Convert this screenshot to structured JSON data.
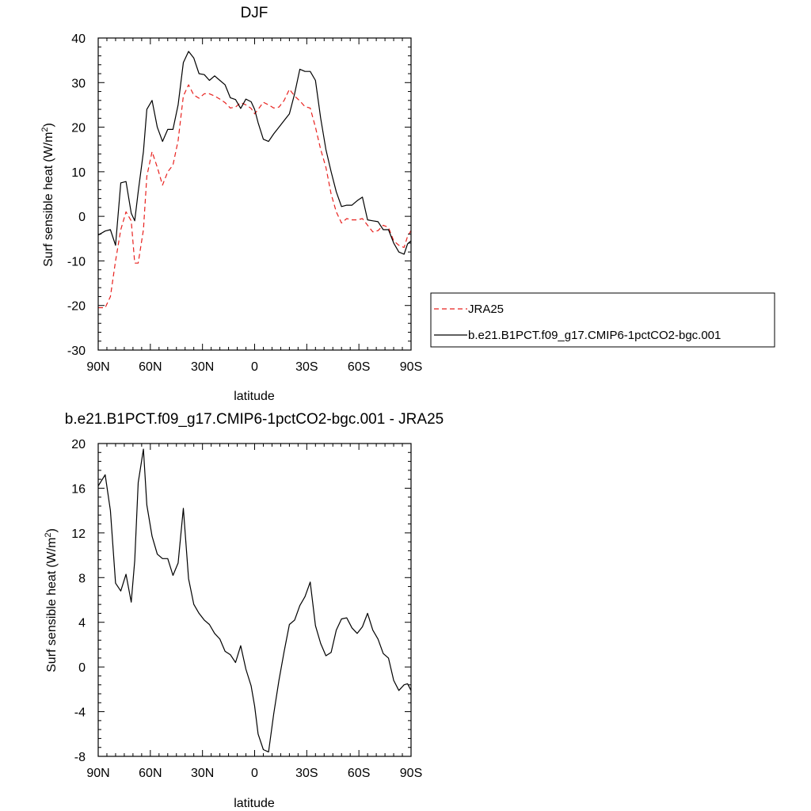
{
  "chart_data": [
    {
      "type": "line",
      "title": "DJF",
      "xlabel": "latitude",
      "ylabel": "Surf sensible heat",
      "ylabel_unit": "(W/m",
      "ylabel_unit_sup": "2",
      "ylabel_unit_close": ")",
      "xlim": [
        90,
        -90
      ],
      "ylim": [
        -30,
        40
      ],
      "x_ticks": [
        90,
        60,
        30,
        0,
        -30,
        -60,
        -90
      ],
      "x_tick_labels": [
        "90N",
        "60N",
        "30N",
        "0",
        "30S",
        "60S",
        "90S"
      ],
      "y_ticks": [
        -30,
        -20,
        -10,
        0,
        10,
        20,
        30,
        40
      ],
      "y_tick_labels": [
        "-30",
        "-20",
        "-10",
        "0",
        "10",
        "20",
        "30",
        "40"
      ],
      "grid": false,
      "legend": "outside-right",
      "series": [
        {
          "name": "JRA25",
          "color": "#e8211e",
          "style": "dashed",
          "x": [
            90,
            86,
            83,
            80,
            77,
            74,
            71,
            69,
            67,
            64,
            62,
            59,
            56,
            53,
            50,
            47,
            44,
            41,
            38,
            35,
            32,
            29,
            26,
            23,
            20,
            17,
            14,
            11,
            8,
            5,
            2,
            0,
            -2,
            -5,
            -8,
            -11,
            -14,
            -17,
            -20,
            -23,
            -26,
            -29,
            -32,
            -35,
            -38,
            -41,
            -44,
            -47,
            -50,
            -53,
            -56,
            -59,
            -62,
            -65,
            -68,
            -71,
            -74,
            -77,
            -80,
            -83,
            -86,
            -88,
            -90
          ],
          "y": [
            -20.5,
            -20.5,
            -18,
            -10,
            -3,
            1,
            -1,
            -10.5,
            -10.5,
            -3,
            9,
            14.5,
            11,
            7,
            10,
            11.5,
            17,
            27,
            29.5,
            27.2,
            26.5,
            27.5,
            27.5,
            27,
            26.3,
            25.5,
            24.3,
            24.5,
            25.5,
            25,
            24.2,
            23,
            24,
            25.6,
            25,
            24.3,
            24.5,
            26,
            28.5,
            27,
            25.9,
            24.6,
            24.3,
            20,
            15,
            11,
            5,
            1,
            -1.5,
            -0.5,
            -0.8,
            -0.8,
            -0.5,
            -2,
            -3.5,
            -3.2,
            -2,
            -2.5,
            -5.5,
            -6.5,
            -7,
            -4.5,
            -3.2
          ]
        },
        {
          "name": "b.e21.B1PCT.f09_g17.CMIP6-1pctCO2-bgc.001",
          "color": "#000000",
          "style": "solid",
          "x": [
            90,
            86,
            83,
            80,
            77,
            74,
            71,
            69,
            67,
            64,
            62,
            59,
            56,
            53,
            50,
            47,
            44,
            41,
            38,
            35,
            32,
            29,
            26,
            23,
            20,
            17,
            14,
            11,
            8,
            5,
            2,
            0,
            -2,
            -5,
            -8,
            -11,
            -14,
            -17,
            -20,
            -23,
            -26,
            -29,
            -32,
            -35,
            -38,
            -41,
            -44,
            -47,
            -50,
            -53,
            -56,
            -59,
            -62,
            -65,
            -68,
            -71,
            -74,
            -77,
            -80,
            -83,
            -86,
            -88,
            -90
          ],
          "y": [
            -4.2,
            -3.3,
            -3,
            -6.5,
            7.5,
            7.8,
            0.7,
            -1,
            5.5,
            14.5,
            24,
            26,
            20,
            16.8,
            19.5,
            19.5,
            25,
            34.5,
            37,
            35.5,
            32,
            31.8,
            30.5,
            31.5,
            30.5,
            29.5,
            26.6,
            26.2,
            24.2,
            26.3,
            25.7,
            24,
            21,
            17.3,
            16.8,
            18.5,
            20,
            21.5,
            23,
            27.5,
            33,
            32.5,
            32.5,
            30.5,
            22,
            15,
            10,
            5.5,
            2.2,
            2.5,
            2.5,
            3.5,
            4.3,
            -0.8,
            -1,
            -1.2,
            -3,
            -3,
            -6,
            -8,
            -8.5,
            -6.2,
            -5.5
          ]
        }
      ]
    },
    {
      "type": "line",
      "title": "b.e21.B1PCT.f09_g17.CMIP6-1pctCO2-bgc.001 - JRA25",
      "xlabel": "latitude",
      "ylabel": "Surf sensible heat",
      "ylabel_unit": "(W/m",
      "ylabel_unit_sup": "2",
      "ylabel_unit_close": ")",
      "xlim": [
        90,
        -90
      ],
      "ylim": [
        -8,
        20
      ],
      "x_ticks": [
        90,
        60,
        30,
        0,
        -30,
        -60,
        -90
      ],
      "x_tick_labels": [
        "90N",
        "60N",
        "30N",
        "0",
        "30S",
        "60S",
        "90S"
      ],
      "y_ticks": [
        -8,
        -4,
        0,
        4,
        8,
        12,
        16,
        20
      ],
      "y_tick_labels": [
        "-8",
        "-4",
        "0",
        "4",
        "8",
        "12",
        "16",
        "20"
      ],
      "grid": false,
      "series": [
        {
          "color": "#000000",
          "style": "solid",
          "x": [
            90,
            86,
            83,
            80,
            77,
            74,
            71,
            69,
            67,
            64,
            62,
            59,
            56,
            53,
            50,
            47,
            44,
            41,
            38,
            35,
            32,
            29,
            26,
            23,
            20,
            17,
            14,
            11,
            8,
            5,
            2,
            0,
            -2,
            -5,
            -8,
            -11,
            -14,
            -17,
            -20,
            -23,
            -26,
            -29,
            -32,
            -35,
            -38,
            -41,
            -44,
            -47,
            -50,
            -53,
            -56,
            -59,
            -62,
            -65,
            -68,
            -71,
            -74,
            -77,
            -80,
            -83,
            -86,
            -88,
            -90
          ],
          "y": [
            16.2,
            17.2,
            14,
            7.5,
            6.8,
            8.3,
            5.8,
            9.5,
            16.5,
            19.5,
            14.5,
            11.7,
            10.1,
            9.7,
            9.7,
            8.2,
            9.3,
            14.2,
            7.9,
            5.6,
            4.8,
            4.2,
            3.8,
            3,
            2.5,
            1.4,
            1.1,
            0.4,
            1.9,
            -0.2,
            -1.7,
            -3.5,
            -6,
            -7.4,
            -7.6,
            -4.2,
            -1.2,
            1.4,
            3.8,
            4.2,
            5.5,
            6.3,
            7.6,
            3.7,
            2.1,
            1,
            1.3,
            3.3,
            4.3,
            4.4,
            3.5,
            3,
            3.6,
            4.8,
            3.3,
            2.5,
            1.2,
            0.8,
            -1.2,
            -2.1,
            -1.6,
            -1.5,
            -2.1
          ]
        }
      ]
    }
  ]
}
